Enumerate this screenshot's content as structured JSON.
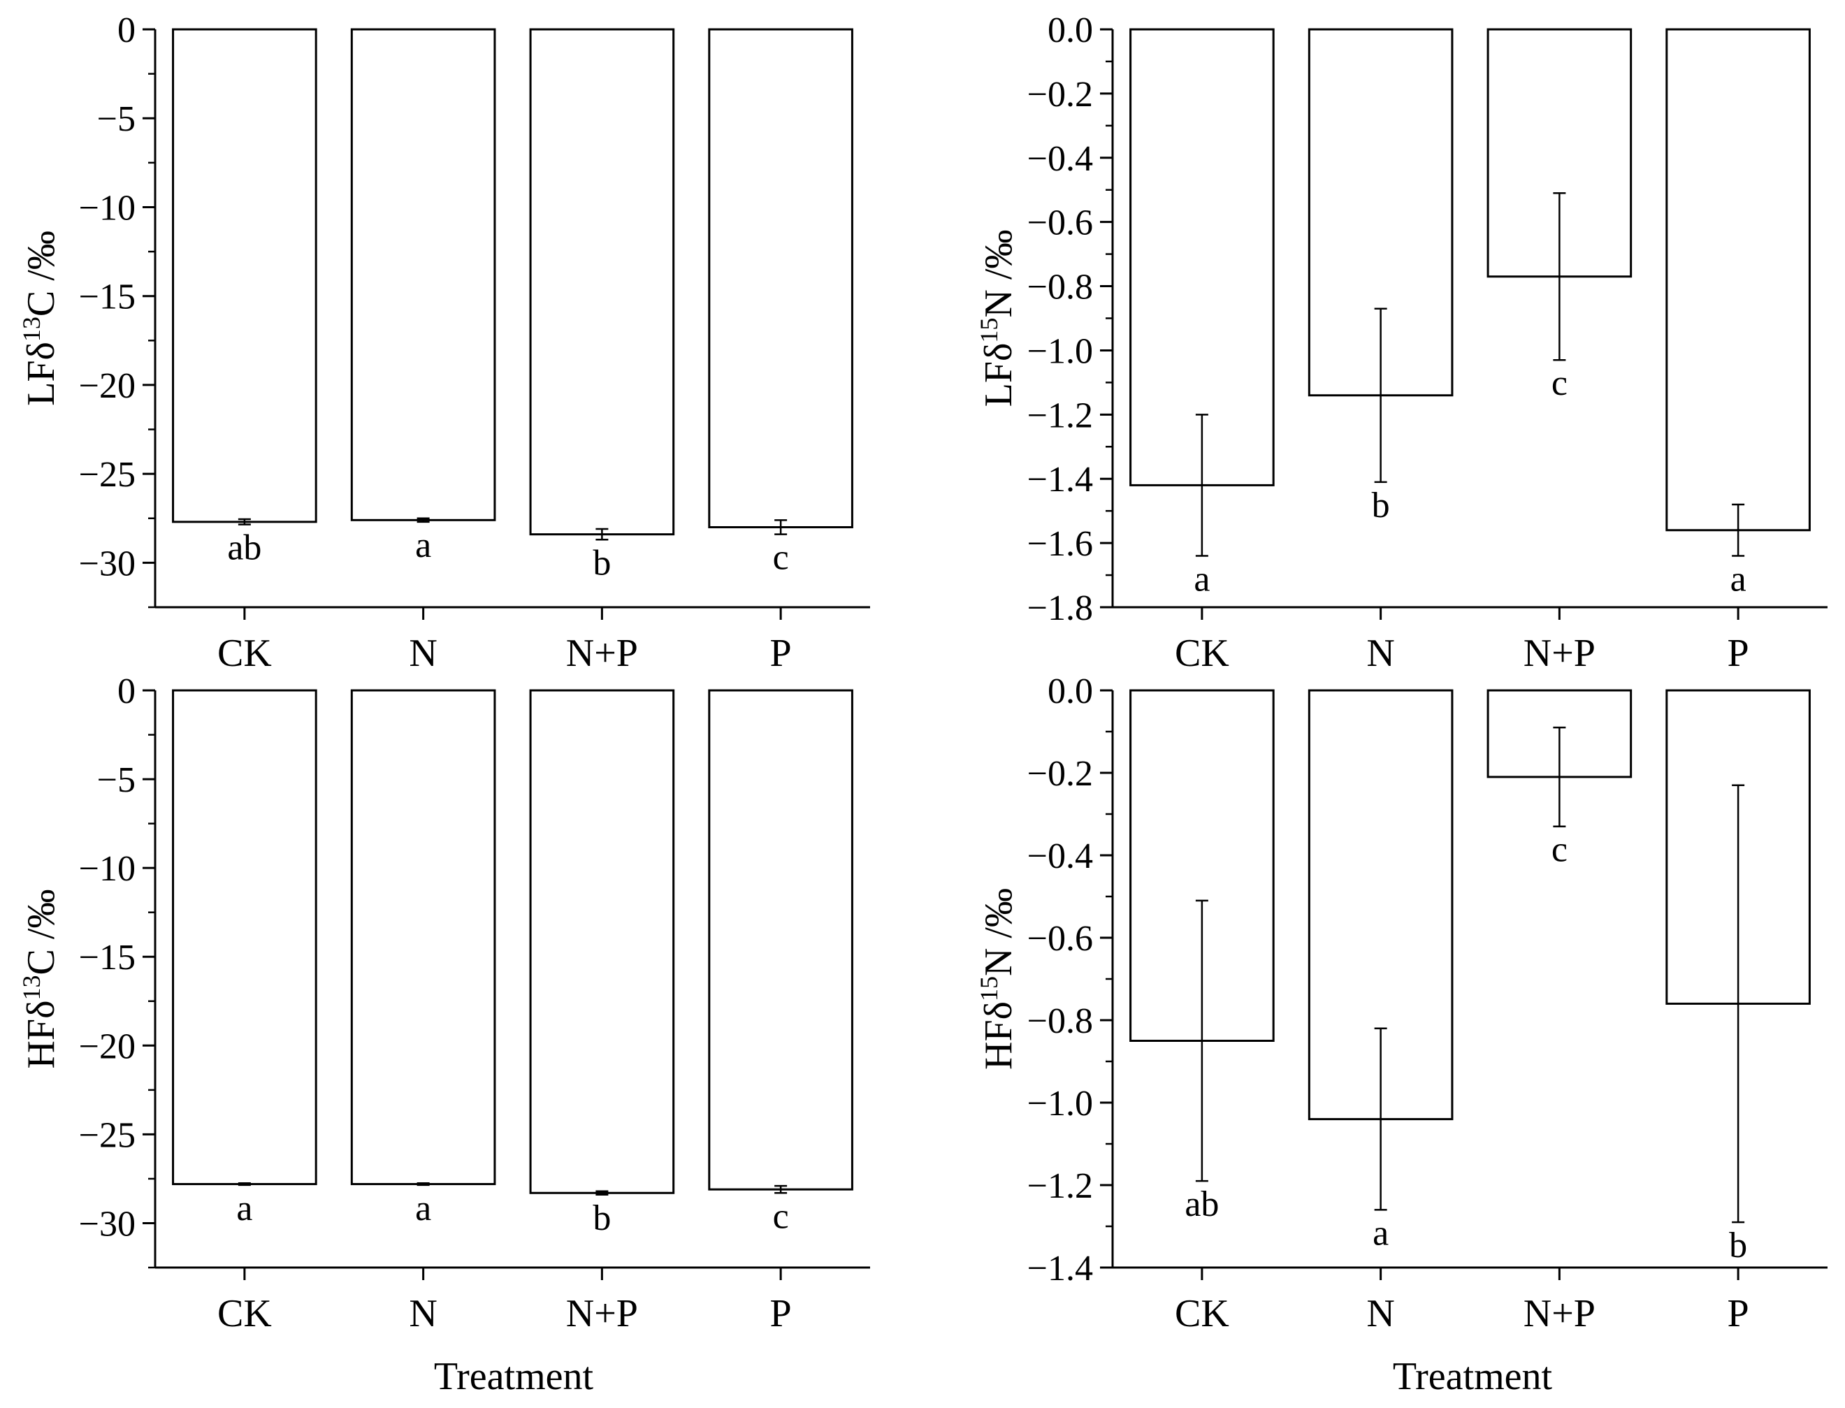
{
  "x_title": "Treatment",
  "chart_data": [
    {
      "type": "bar",
      "panel": "top-left",
      "ylabel": {
        "prefix": "LF",
        "isotope_mass": "13",
        "element": "C",
        "unit": "/‰"
      },
      "categories": [
        "CK",
        "N",
        "N+P",
        "P"
      ],
      "values": [
        -27.7,
        -27.6,
        -28.4,
        -28.0
      ],
      "errors": [
        0.15,
        0.1,
        0.3,
        0.4
      ],
      "letters": [
        "ab",
        "a",
        "b",
        "c"
      ],
      "ylim": [
        -32.5,
        0
      ],
      "yticks": [
        0,
        -5,
        -10,
        -15,
        -20,
        -25,
        -30
      ],
      "ytick_labels": [
        "0",
        "−5",
        "−10",
        "−15",
        "−20",
        "−25",
        "−30"
      ]
    },
    {
      "type": "bar",
      "panel": "top-right",
      "ylabel": {
        "prefix": "LF",
        "isotope_mass": "15",
        "element": "N",
        "unit": "/‰"
      },
      "categories": [
        "CK",
        "N",
        "N+P",
        "P"
      ],
      "values": [
        -1.42,
        -1.14,
        -0.77,
        -1.56
      ],
      "errors": [
        0.22,
        0.27,
        0.26,
        0.08
      ],
      "letters": [
        "a",
        "b",
        "c",
        "a"
      ],
      "ylim": [
        -1.8,
        0
      ],
      "yticks": [
        0,
        -0.2,
        -0.4,
        -0.6,
        -0.8,
        -1.0,
        -1.2,
        -1.4,
        -1.6,
        -1.8
      ],
      "ytick_labels": [
        "0.0",
        "−0.2",
        "−0.4",
        "−0.6",
        "−0.8",
        "−1.0",
        "−1.2",
        "−1.4",
        "−1.6",
        "−1.8"
      ]
    },
    {
      "type": "bar",
      "panel": "bottom-left",
      "ylabel": {
        "prefix": "HF",
        "isotope_mass": "13",
        "element": "C",
        "unit": "/‰"
      },
      "categories": [
        "CK",
        "N",
        "N+P",
        "P"
      ],
      "values": [
        -27.8,
        -27.8,
        -28.3,
        -28.1
      ],
      "errors": [
        0.05,
        0.05,
        0.1,
        0.2
      ],
      "letters": [
        "a",
        "a",
        "b",
        "c"
      ],
      "ylim": [
        -32.5,
        0
      ],
      "yticks": [
        0,
        -5,
        -10,
        -15,
        -20,
        -25,
        -30
      ],
      "ytick_labels": [
        "0",
        "−5",
        "−10",
        "−15",
        "−20",
        "−25",
        "−30"
      ]
    },
    {
      "type": "bar",
      "panel": "bottom-right",
      "ylabel": {
        "prefix": "HF",
        "isotope_mass": "15",
        "element": "N",
        "unit": "/‰"
      },
      "categories": [
        "CK",
        "N",
        "N+P",
        "P"
      ],
      "values": [
        -0.85,
        -1.04,
        -0.21,
        -0.76
      ],
      "errors": [
        0.34,
        0.22,
        0.12,
        0.53
      ],
      "letters": [
        "ab",
        "a",
        "c",
        "b"
      ],
      "ylim": [
        -1.4,
        0
      ],
      "yticks": [
        0,
        -0.2,
        -0.4,
        -0.6,
        -0.8,
        -1.0,
        -1.2,
        -1.4
      ],
      "ytick_labels": [
        "0.0",
        "−0.2",
        "−0.4",
        "−0.6",
        "−0.8",
        "−1.0",
        "−1.2",
        "−1.4"
      ]
    }
  ]
}
